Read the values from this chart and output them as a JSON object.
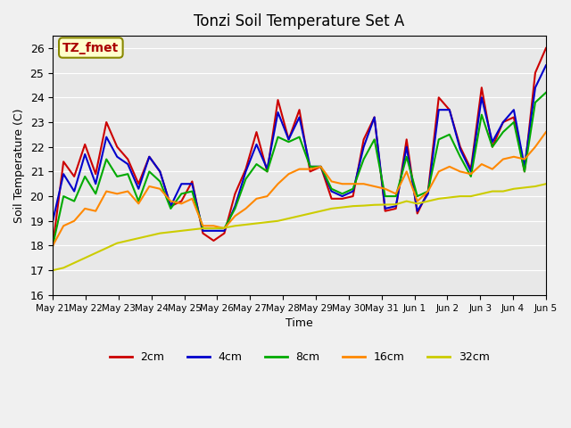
{
  "title": "Tonzi Soil Temperature Set A",
  "xlabel": "Time",
  "ylabel": "Soil Temperature (C)",
  "annotation": "TZ_fmet",
  "ylim": [
    16.0,
    26.5
  ],
  "yticks": [
    16.0,
    17.0,
    18.0,
    19.0,
    20.0,
    21.0,
    22.0,
    23.0,
    24.0,
    25.0,
    26.0
  ],
  "bg_color": "#e8e8e8",
  "series_colors": {
    "2cm": "#cc0000",
    "4cm": "#0000cc",
    "8cm": "#00aa00",
    "16cm": "#ff8800",
    "32cm": "#cccc00"
  },
  "x_labels": [
    "May 21",
    "May 22",
    "May 23",
    "May 24",
    "May 25",
    "May 26",
    "May 27",
    "May 28",
    "May 29",
    "May 30",
    "May 31",
    "Jun 1",
    "Jun 2",
    "Jun 3",
    "Jun 4",
    "Jun 5"
  ],
  "n_days": 16,
  "series": {
    "2cm": [
      18.0,
      21.4,
      20.8,
      22.1,
      20.9,
      23.0,
      22.0,
      21.5,
      20.5,
      21.6,
      21.0,
      19.6,
      19.8,
      20.6,
      18.5,
      18.2,
      18.5,
      20.1,
      21.1,
      22.6,
      21.0,
      23.9,
      22.3,
      23.5,
      21.0,
      21.2,
      19.9,
      19.9,
      20.0,
      22.3,
      23.2,
      19.4,
      19.5,
      22.3,
      19.3,
      20.2,
      24.0,
      23.5,
      22.0,
      21.1,
      24.4,
      22.0,
      23.0,
      23.2,
      21.0,
      25.0,
      26.0
    ],
    "4cm": [
      19.0,
      20.9,
      20.2,
      21.7,
      20.5,
      22.4,
      21.6,
      21.3,
      20.3,
      21.6,
      21.0,
      19.6,
      20.5,
      20.5,
      18.6,
      18.6,
      18.6,
      19.6,
      21.0,
      22.1,
      21.1,
      23.4,
      22.3,
      23.2,
      21.2,
      21.2,
      20.2,
      20.0,
      20.2,
      22.0,
      23.2,
      19.5,
      19.6,
      22.0,
      19.4,
      20.1,
      23.5,
      23.5,
      21.9,
      21.0,
      24.0,
      22.2,
      23.0,
      23.5,
      21.2,
      24.4,
      25.3
    ],
    "8cm": [
      18.0,
      20.0,
      19.8,
      20.8,
      20.1,
      21.5,
      20.8,
      20.9,
      19.8,
      21.0,
      20.6,
      19.5,
      20.1,
      20.2,
      18.7,
      18.7,
      18.7,
      19.5,
      20.7,
      21.3,
      21.0,
      22.4,
      22.2,
      22.4,
      21.2,
      21.2,
      20.3,
      20.1,
      20.3,
      21.5,
      22.3,
      20.0,
      20.0,
      21.6,
      20.0,
      20.2,
      22.3,
      22.5,
      21.6,
      20.8,
      23.3,
      22.0,
      22.6,
      23.0,
      21.0,
      23.8,
      24.2
    ],
    "16cm": [
      18.0,
      18.8,
      19.0,
      19.5,
      19.4,
      20.2,
      20.1,
      20.2,
      19.7,
      20.4,
      20.3,
      19.8,
      19.7,
      19.9,
      18.8,
      18.8,
      18.7,
      19.2,
      19.5,
      19.9,
      20.0,
      20.5,
      20.9,
      21.1,
      21.1,
      21.2,
      20.6,
      20.5,
      20.5,
      20.5,
      20.4,
      20.3,
      20.1,
      21.0,
      19.8,
      20.2,
      21.0,
      21.2,
      21.0,
      20.9,
      21.3,
      21.1,
      21.5,
      21.6,
      21.5,
      22.0,
      22.6
    ],
    "32cm": [
      17.0,
      17.1,
      17.3,
      17.5,
      17.7,
      17.9,
      18.1,
      18.2,
      18.3,
      18.4,
      18.5,
      18.55,
      18.6,
      18.65,
      18.7,
      18.7,
      18.72,
      18.8,
      18.85,
      18.9,
      18.95,
      19.0,
      19.1,
      19.2,
      19.3,
      19.4,
      19.5,
      19.55,
      19.6,
      19.62,
      19.65,
      19.66,
      19.67,
      19.8,
      19.7,
      19.8,
      19.9,
      19.95,
      20.0,
      20.0,
      20.1,
      20.2,
      20.2,
      20.3,
      20.35,
      20.4,
      20.5
    ]
  }
}
